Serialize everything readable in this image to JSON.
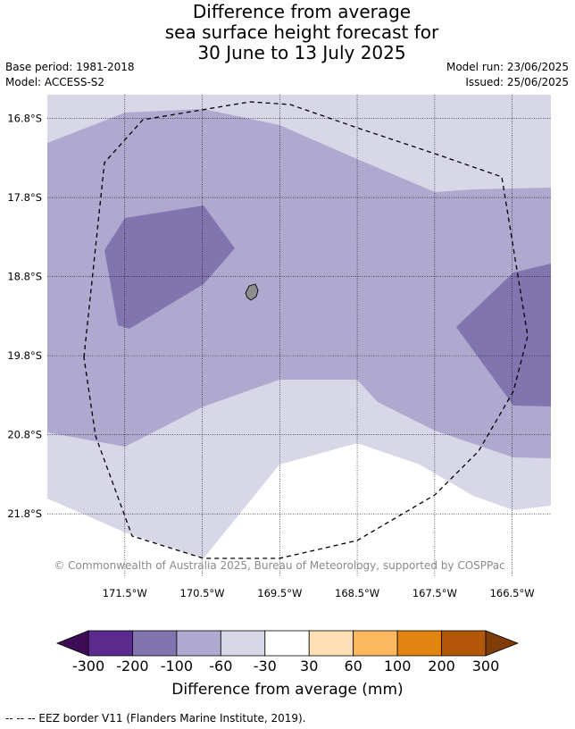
{
  "title": {
    "line1": "Difference from average",
    "line2": "sea surface height forecast for",
    "line3": "30 June to 13 July 2025"
  },
  "meta": {
    "base_period": "Base period: 1981-2018",
    "model": "Model: ACCESS-S2",
    "model_run": "Model run: 23/06/2025",
    "issued": "Issued: 25/06/2025"
  },
  "map": {
    "lat_labels": [
      "16.8°S",
      "17.8°S",
      "18.8°S",
      "19.8°S",
      "20.8°S",
      "21.8°S"
    ],
    "lon_labels": [
      "171.5°W",
      "170.5°W",
      "169.5°W",
      "168.5°W",
      "167.5°W",
      "166.5°W"
    ],
    "lat_values": [
      -16.8,
      -17.8,
      -18.8,
      -19.8,
      -20.8,
      -21.8
    ],
    "lon_values": [
      -171.5,
      -170.5,
      -169.5,
      -168.5,
      -167.5,
      -166.5
    ],
    "extent": {
      "lon_min": -172.5,
      "lon_max": -166.0,
      "lat_max": -16.5,
      "lat_min": -22.6
    },
    "copyright": "© Commonwealth of Australia 2025, Bureau of Meteorology, supported by COSPPac",
    "legend_eez": "--  --  -- EEZ border V11 (Flanders Marine Institute, 2019).",
    "colors": {
      "-60_-30": "#d7d7e8",
      "-100_-60": "#afa8cf",
      "-200_-100": "#8274ae",
      "land": "#8c8c8c"
    }
  },
  "colorbar": {
    "title": "Difference from average (mm)",
    "ticks": [
      "-300",
      "-200",
      "-100",
      "-60",
      "-30",
      "30",
      "60",
      "100",
      "200",
      "300"
    ],
    "colors": [
      "#3d0c56",
      "#5b2a8e",
      "#8274ae",
      "#afa8cf",
      "#d7d7e8",
      "#ffffff",
      "#ffe0b4",
      "#fdb75e",
      "#e2840f",
      "#b35709",
      "#7f3b08"
    ]
  }
}
